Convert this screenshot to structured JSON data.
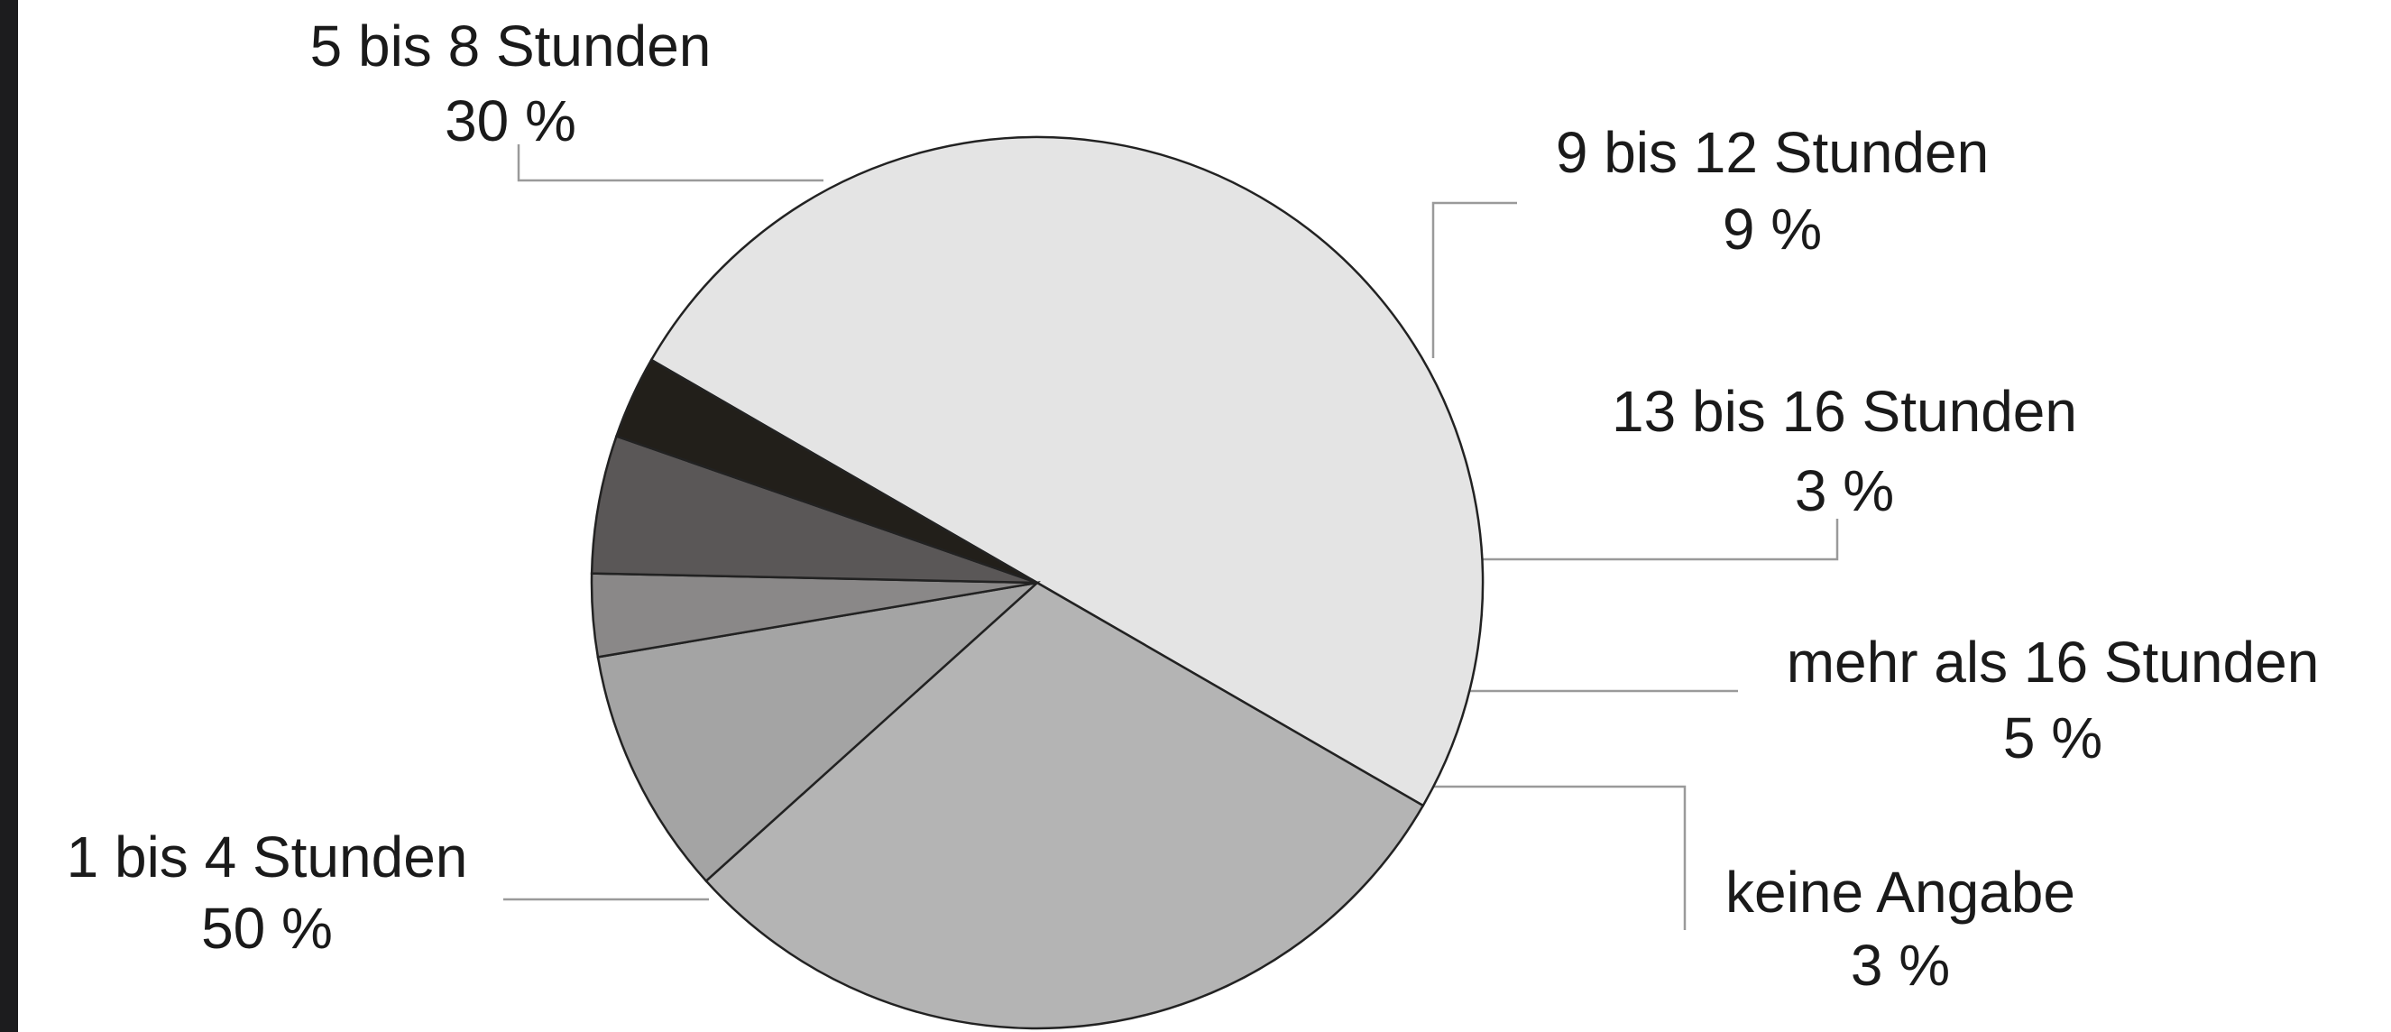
{
  "chart_data": {
    "type": "pie",
    "categories": [
      "1 bis 4 Stunden",
      "5 bis 8 Stunden",
      "9 bis 12 Stunden",
      "13 bis 16 Stunden",
      "mehr als 16 Stunden",
      "keine Angabe"
    ],
    "values": [
      50,
      30,
      9,
      3,
      5,
      3
    ],
    "value_labels": [
      "50 %",
      "30 %",
      "9 %",
      "3 %",
      "5 %",
      "3 %"
    ],
    "colors": [
      "#e4e4e4",
      "#b4b4b4",
      "#a4a4a4",
      "#8a8888",
      "#5a5757",
      "#221f1a"
    ]
  }
}
